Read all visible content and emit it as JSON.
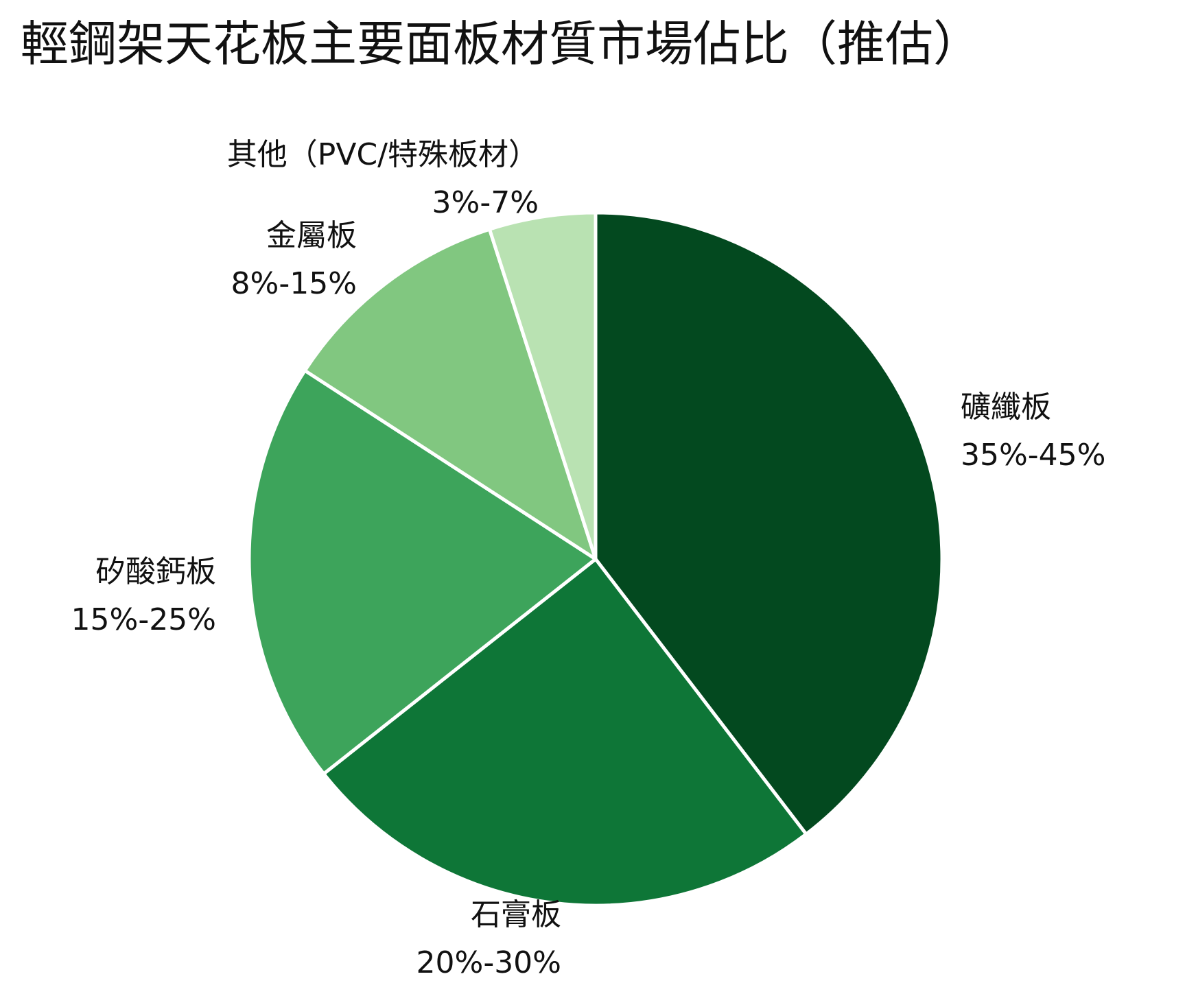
{
  "chart_data": {
    "type": "pie",
    "title": "輕鋼架天花板主要面板材質市場佔比（推估）",
    "slices": [
      {
        "label": "礦纖板",
        "range_text": "35%-45%",
        "value": 40,
        "color": "#03491f"
      },
      {
        "label": "石膏板",
        "range_text": "20%-30%",
        "value": 25,
        "color": "#0e7637"
      },
      {
        "label": "矽酸鈣板",
        "range_text": "15%-25%",
        "value": 20,
        "color": "#3da45b"
      },
      {
        "label": "金屬板",
        "range_text": "8%-15%",
        "value": 11,
        "color": "#81c780"
      },
      {
        "label": "其他（PVC/特殊板材）",
        "range_text": "3%-7%",
        "value": 5,
        "color": "#b9e2b2"
      }
    ],
    "start_angle": "12 o'clock",
    "direction": "clockwise",
    "slice_border_color": "#ffffff",
    "legend": "none",
    "grid": false
  }
}
